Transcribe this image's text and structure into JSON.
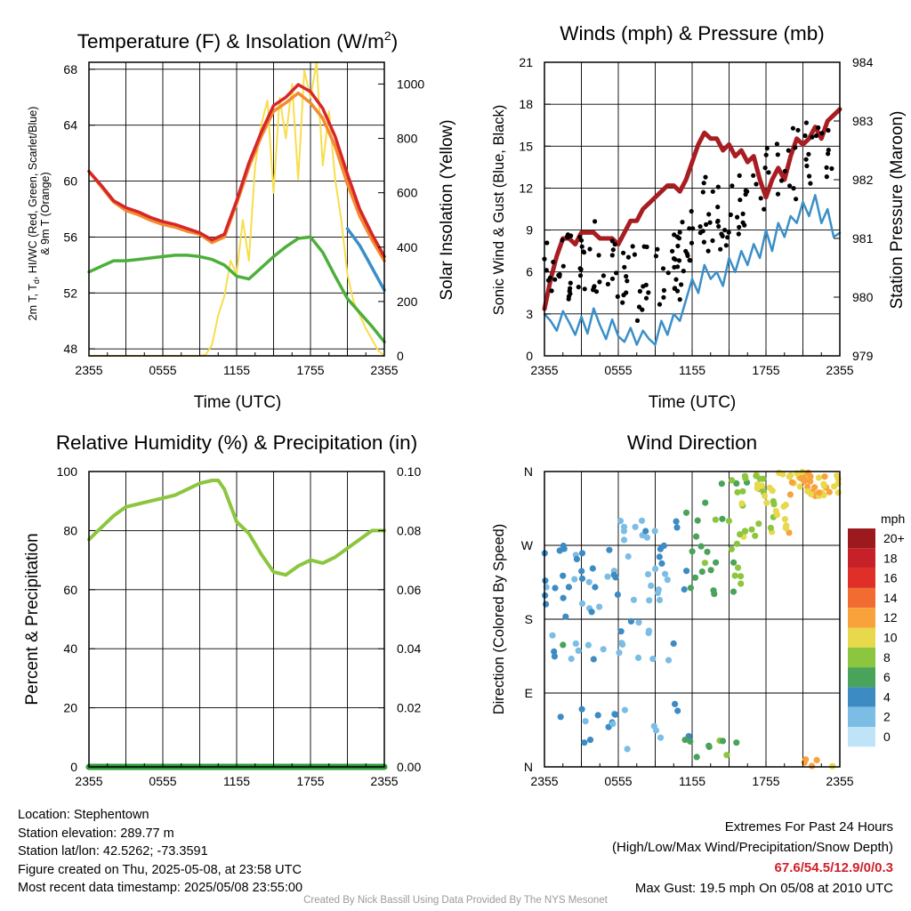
{
  "x_ticks": [
    "2355",
    "0555",
    "1155",
    "1755",
    "2355"
  ],
  "time_label": "Time (UTC)",
  "chart_data": [
    {
      "id": "temp",
      "type": "line",
      "title": "Temperature (F) & Insolation (W/m",
      "title_sup": "2",
      "title_end": ")",
      "ylabel_line1": "2m T, T",
      "ylabel_sub": "d",
      "ylabel_rest": ", HI/WC (Red, Green, Scarlet/Blue)",
      "ylabel_line2": "& 9m T (Orange)",
      "y2label": "Solar Insolation (Yellow)",
      "ylim": [
        47.5,
        68.5
      ],
      "yticks": [
        48,
        52,
        56,
        60,
        64,
        68
      ],
      "y2lim": [
        0,
        1080
      ],
      "y2ticks": [
        0,
        200,
        400,
        600,
        800,
        1000
      ],
      "series": [
        {
          "color": "#f7de4d",
          "axis": "right",
          "width": 2,
          "x": [
            0,
            1,
            2,
            3,
            4,
            5,
            6,
            7,
            8,
            9,
            9.5,
            10,
            10.5,
            11,
            11.5,
            12,
            12.5,
            13,
            13.5,
            14,
            14.5,
            15,
            15.5,
            16,
            16.5,
            17,
            17.5,
            18,
            18.5,
            19,
            19.5,
            20,
            20.5,
            21,
            21.5,
            22,
            22.5,
            23,
            23.5,
            24
          ],
          "y": [
            0,
            0,
            0,
            0,
            0,
            0,
            0,
            0,
            0,
            0,
            5,
            40,
            150,
            220,
            350,
            300,
            500,
            350,
            700,
            850,
            940,
            600,
            950,
            800,
            1000,
            650,
            1050,
            950,
            1080,
            700,
            900,
            650,
            500,
            300,
            200,
            150,
            100,
            60,
            20,
            0
          ]
        },
        {
          "color": "#3a8fc9",
          "axis": "left",
          "width": 3.5,
          "x": [
            21,
            21.5,
            22,
            22.5,
            23,
            23.5,
            24
          ],
          "y": [
            56.6,
            56.0,
            55.4,
            54.6,
            53.8,
            53.0,
            52.2
          ]
        },
        {
          "color": "#4caf3a",
          "axis": "left",
          "width": 3.5,
          "x": [
            0,
            1,
            2,
            3,
            4,
            5,
            6,
            7,
            8,
            9,
            10,
            11,
            12,
            13,
            14,
            15,
            16,
            17,
            18,
            19,
            20,
            21,
            22,
            23,
            24
          ],
          "y": [
            53.5,
            53.9,
            54.3,
            54.3,
            54.4,
            54.5,
            54.6,
            54.7,
            54.7,
            54.6,
            54.4,
            54.0,
            53.2,
            53.0,
            53.8,
            54.6,
            55.3,
            55.9,
            56.0,
            54.9,
            53.2,
            51.6,
            50.6,
            49.6,
            48.5
          ]
        },
        {
          "color": "#f28c2e",
          "axis": "left",
          "width": 3.5,
          "x": [
            0,
            1,
            2,
            3,
            4,
            5,
            6,
            7,
            8,
            9,
            10,
            11,
            12,
            13,
            14,
            15,
            16,
            17,
            18,
            19,
            20,
            21,
            22,
            23,
            24
          ],
          "y": [
            60.7,
            59.6,
            58.5,
            57.9,
            57.6,
            57.2,
            56.9,
            56.7,
            56.4,
            56.2,
            55.6,
            56.0,
            58.4,
            61.0,
            63.2,
            65.0,
            65.6,
            66.3,
            65.6,
            64.5,
            62.5,
            59.8,
            57.5,
            55.8,
            54.3
          ]
        },
        {
          "color": "#d7262a",
          "axis": "left",
          "width": 3.5,
          "x": [
            0,
            1,
            2,
            3,
            4,
            5,
            6,
            7,
            8,
            9,
            10,
            11,
            12,
            13,
            14,
            15,
            16,
            17,
            18,
            19,
            20,
            21,
            22,
            23,
            24
          ],
          "y": [
            60.7,
            59.7,
            58.6,
            58.1,
            57.8,
            57.4,
            57.1,
            56.9,
            56.6,
            56.3,
            55.8,
            56.2,
            58.6,
            61.3,
            63.5,
            65.4,
            66.0,
            66.9,
            66.4,
            65.2,
            63.2,
            60.5,
            58.0,
            56.2,
            54.6
          ]
        }
      ]
    },
    {
      "id": "wind",
      "type": "line",
      "title": "Winds (mph) & Pressure (mb)",
      "ylabel": "Sonic Wind & Gust (Blue, Black)",
      "y2label": "Station Pressure (Maroon)",
      "ylim": [
        0,
        21
      ],
      "yticks": [
        0,
        3,
        6,
        9,
        12,
        15,
        18,
        21
      ],
      "y2lim": [
        979,
        984
      ],
      "y2ticks": [
        979,
        980,
        981,
        982,
        983,
        984
      ],
      "series": [
        {
          "color": "#3a8fc9",
          "axis": "left",
          "width": 2.5,
          "x": [
            0,
            0.5,
            1,
            1.5,
            2,
            2.5,
            3,
            3.5,
            4,
            4.5,
            5,
            5.5,
            6,
            6.5,
            7,
            7.5,
            8,
            8.5,
            9,
            9.5,
            10,
            10.5,
            11,
            11.5,
            12,
            12.5,
            13,
            13.5,
            14,
            14.5,
            15,
            15.5,
            16,
            16.5,
            17,
            17.5,
            18,
            18.5,
            19,
            19.5,
            20,
            20.5,
            21,
            21.5,
            22,
            22.5,
            23,
            23.5,
            24
          ],
          "y": [
            3.0,
            2.5,
            1.8,
            3.2,
            2.4,
            1.5,
            2.8,
            1.6,
            3.4,
            2.2,
            1.2,
            2.6,
            1.4,
            1.0,
            2.0,
            0.8,
            1.8,
            1.2,
            0.8,
            2.5,
            1.5,
            3.0,
            2.5,
            4.0,
            5.5,
            4.5,
            6.5,
            5.5,
            6.0,
            5.0,
            7.0,
            6.0,
            7.5,
            6.5,
            8.0,
            7.0,
            9.0,
            7.5,
            9.5,
            8.5,
            10.0,
            9.5,
            11.0,
            10.0,
            11.5,
            9.5,
            10.5,
            8.5,
            8.8
          ]
        },
        {
          "color": "#a81d22",
          "axis": "right",
          "width": 5,
          "x": [
            0,
            0.5,
            1,
            1.5,
            2,
            2.5,
            3,
            3.5,
            4,
            4.5,
            5,
            5.5,
            6,
            6.5,
            7,
            7.5,
            8,
            8.5,
            9,
            9.5,
            10,
            10.5,
            11,
            11.5,
            12,
            12.5,
            13,
            13.5,
            14,
            14.5,
            15,
            15.5,
            16,
            16.5,
            17,
            17.5,
            18,
            18.5,
            19,
            19.5,
            20,
            20.5,
            21,
            21.5,
            22,
            22.5,
            23,
            23.5,
            24
          ],
          "y": [
            979.8,
            980.3,
            980.7,
            981.0,
            981.0,
            980.9,
            981.1,
            981.1,
            981.1,
            981.0,
            981.0,
            981.0,
            980.9,
            981.1,
            981.3,
            981.3,
            981.5,
            981.6,
            981.7,
            981.8,
            981.9,
            981.9,
            981.8,
            982.0,
            982.3,
            982.6,
            982.8,
            982.7,
            982.7,
            982.5,
            982.6,
            982.4,
            982.5,
            982.3,
            982.4,
            982.0,
            981.7,
            982.0,
            982.2,
            982.0,
            982.4,
            982.7,
            982.6,
            982.7,
            982.9,
            982.7,
            983.0,
            983.1,
            983.2
          ]
        }
      ],
      "points": {
        "color": "#000000",
        "axis": "left",
        "count": 180,
        "seed": 7
      }
    },
    {
      "id": "rh",
      "type": "line",
      "title": "Relative Humidity (%) & Precipitation (in)",
      "ylabel": "Percent & Precipitation",
      "ylim": [
        0,
        100
      ],
      "yticks": [
        0,
        20,
        40,
        60,
        80,
        100
      ],
      "y2lim": [
        0,
        0.1
      ],
      "y2ticks": [
        "0.00",
        "0.02",
        "0.04",
        "0.06",
        "0.08",
        "0.10"
      ],
      "series": [
        {
          "color": "#8cc63f",
          "axis": "left",
          "width": 4,
          "x": [
            0,
            1,
            2,
            3,
            4,
            5,
            6,
            7,
            8,
            9,
            10,
            10.5,
            11,
            12,
            13,
            14,
            15,
            16,
            17,
            18,
            19,
            20,
            21,
            22,
            23,
            24
          ],
          "y": [
            77,
            81,
            85,
            88,
            89,
            90,
            91,
            92,
            94,
            96,
            97,
            97,
            94,
            83,
            79,
            72,
            66,
            65,
            68,
            70,
            69,
            71,
            74,
            77,
            80,
            80
          ]
        },
        {
          "color": "#2f9a3a",
          "axis": "left",
          "width": 7,
          "x": [
            0,
            24
          ],
          "y": [
            0,
            0
          ]
        }
      ]
    },
    {
      "id": "dir",
      "type": "scatter",
      "title": "Wind Direction",
      "ylabel": "Direction (Colored By Speed)",
      "ylim": [
        0,
        360
      ],
      "ytick_values": [
        0,
        90,
        180,
        270,
        360
      ],
      "ytick_labels": [
        "N",
        "E",
        "S",
        "W",
        "N"
      ],
      "legend": {
        "title": "mph",
        "labels": [
          "20+",
          "18",
          "16",
          "14",
          "12",
          "10",
          "8",
          "6",
          "4",
          "2",
          "0"
        ],
        "colors": [
          "#9c1a1d",
          "#c62128",
          "#df2f26",
          "#f26b30",
          "#f9a23c",
          "#e7d94b",
          "#8cc63f",
          "#4aa35a",
          "#3d8bc3",
          "#7cbde5",
          "#bfe4f7"
        ]
      },
      "points": {
        "count": 230,
        "seed": 13
      }
    }
  ],
  "footer": {
    "location": "Location: Stephentown",
    "elevation": "Station elevation: 289.77 m",
    "latlon": "Station lat/lon: 42.5262; -73.3591",
    "created": "Figure created on Thu, 2025-05-08, at 23:58 UTC",
    "recent": "Most recent data timestamp: 2025/05/08 23:55:00",
    "extremes_title": "Extremes For Past 24 Hours",
    "extremes_sub": "(High/Low/Max Wind/Precipitation/Snow Depth)",
    "extremes_values": "67.6/54.5/12.9/0/0.3",
    "max_gust": "Max Gust: 19.5 mph On 05/08 at 2010 UTC",
    "credit": "Created By Nick Bassill Using Data Provided By The NYS Mesonet"
  }
}
